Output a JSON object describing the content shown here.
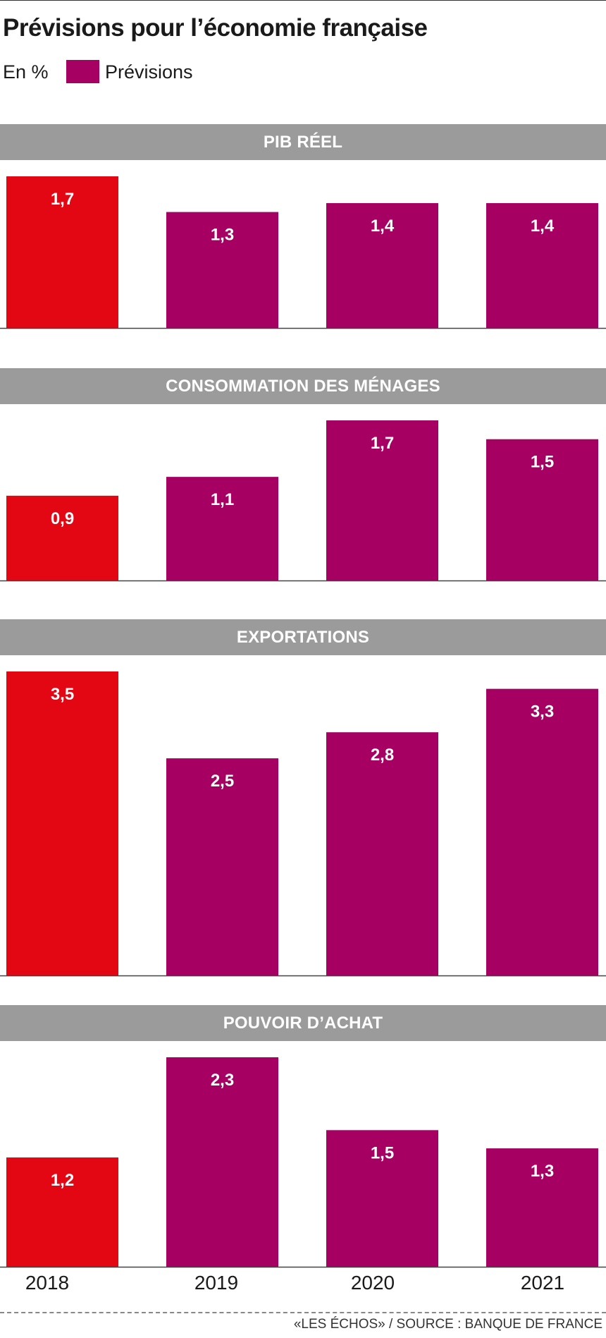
{
  "title": "Prévisions pour l’économie française",
  "unit_label": "En %",
  "legend": {
    "label": "Prévisions"
  },
  "colors": {
    "actual": "#e30613",
    "forecast": "#a50062",
    "header": "#9b9b9b",
    "value_label": "#ffffff",
    "baseline": "#444444"
  },
  "credit": "«LES ÉCHOS»  / SOURCE : BANQUE DE FRANCE",
  "chart_data": [
    {
      "type": "bar",
      "title": "PIB RÉEL",
      "categories": [
        "2018",
        "2019",
        "2020",
        "2021"
      ],
      "values": [
        1.7,
        1.3,
        1.4,
        1.4
      ],
      "labels": [
        "1,7",
        "1,3",
        "1,4",
        "1,4"
      ],
      "forecast_from_index": 1,
      "ylim": [
        0,
        1.7
      ]
    },
    {
      "type": "bar",
      "title": "CONSOMMATION DES MÉNAGES",
      "categories": [
        "2018",
        "2019",
        "2020",
        "2021"
      ],
      "values": [
        0.9,
        1.1,
        1.7,
        1.5
      ],
      "labels": [
        "0,9",
        "1,1",
        "1,7",
        "1,5"
      ],
      "forecast_from_index": 1,
      "ylim": [
        0,
        1.7
      ]
    },
    {
      "type": "bar",
      "title": "EXPORTATIONS",
      "categories": [
        "2018",
        "2019",
        "2020",
        "2021"
      ],
      "values": [
        3.5,
        2.5,
        2.8,
        3.3
      ],
      "labels": [
        "3,5",
        "2,5",
        "2,8",
        "3,3"
      ],
      "forecast_from_index": 1,
      "ylim": [
        0,
        3.5
      ]
    },
    {
      "type": "bar",
      "title": "POUVOIR D’ACHAT",
      "categories": [
        "2018",
        "2019",
        "2020",
        "2021"
      ],
      "values": [
        1.2,
        2.3,
        1.5,
        1.3
      ],
      "labels": [
        "1,2",
        "2,3",
        "1,5",
        "1,3"
      ],
      "forecast_from_index": 1,
      "ylim": [
        0,
        2.3
      ]
    }
  ]
}
